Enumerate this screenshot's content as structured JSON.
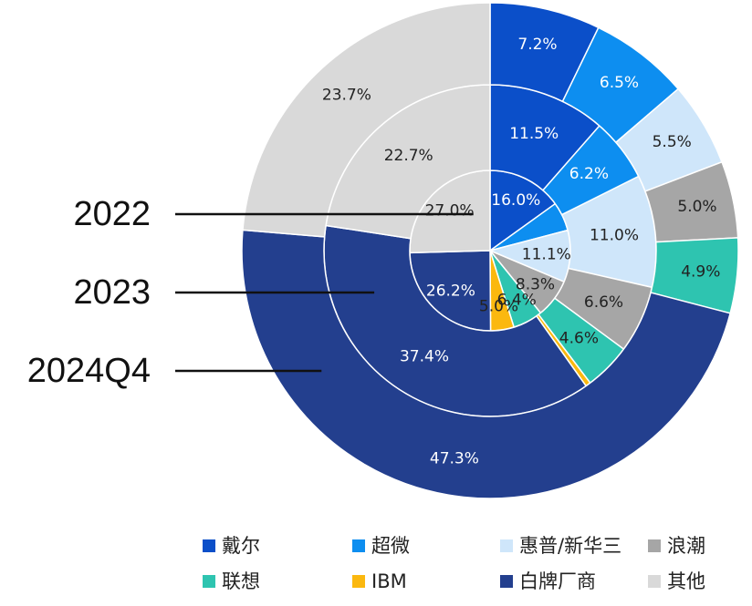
{
  "chart_data": {
    "type": "pie",
    "subtype": "nested-donut",
    "categories": [
      "戴尔",
      "超微",
      "惠普/新华三",
      "浪潮",
      "联想",
      "IBM",
      "白牌厂商",
      "其他"
    ],
    "colors": [
      "#0B4FC9",
      "#0D8EF0",
      "#CFE6FA",
      "#A6A6A6",
      "#2EC4B0",
      "#FBB80F",
      "#233F8E",
      "#D9D9D9"
    ],
    "series": [
      {
        "year_label": "2022",
        "values": [
          16.0,
          6.2,
          11.1,
          8.3,
          6.4,
          5.0,
          26.2,
          27.0
        ],
        "labels": [
          "16.0%",
          "",
          "11.1%",
          "8.3%",
          "6.4%",
          "5.0%",
          "26.2%",
          "27.0%"
        ]
      },
      {
        "year_label": "2023",
        "values": [
          11.5,
          6.2,
          11.0,
          6.6,
          4.6,
          0.5,
          37.4,
          22.7
        ],
        "labels": [
          "11.5%",
          "6.2%",
          "11.0%",
          "6.6%",
          "4.6%",
          "",
          "37.4%",
          "22.7%"
        ]
      },
      {
        "year_label": "2024Q4",
        "values": [
          7.2,
          6.5,
          5.5,
          5.0,
          4.9,
          0,
          47.3,
          23.7
        ],
        "labels": [
          "7.2%",
          "6.5%",
          "5.5%",
          "5.0%",
          "4.9%",
          "",
          "47.3%",
          "23.7%"
        ]
      }
    ],
    "legend": {
      "placement": "bottom",
      "items": [
        "戴尔",
        "超微",
        "惠普/新华三",
        "浪潮",
        "联想",
        "IBM",
        "白牌厂商",
        "其他"
      ]
    }
  }
}
